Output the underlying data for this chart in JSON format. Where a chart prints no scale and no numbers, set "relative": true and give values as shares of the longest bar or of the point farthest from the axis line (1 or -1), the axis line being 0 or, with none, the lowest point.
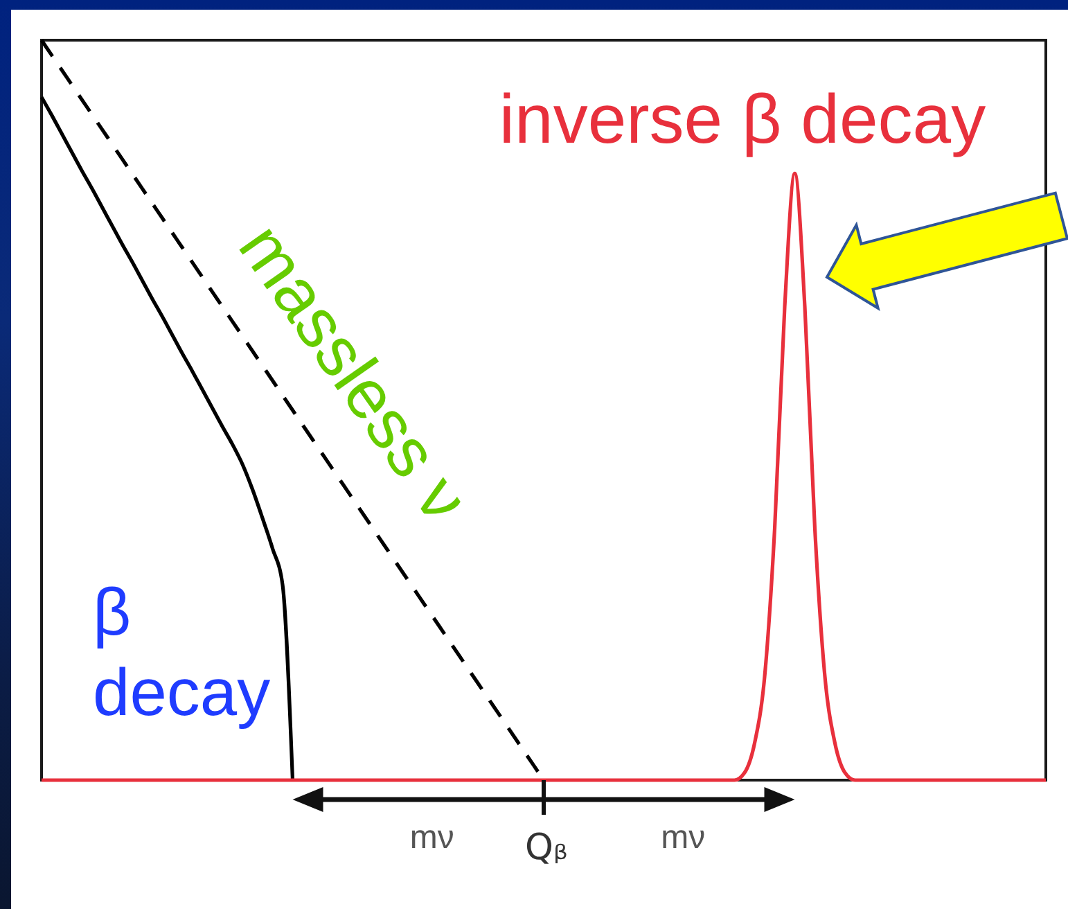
{
  "chart_data": {
    "type": "line",
    "relative": true,
    "categories": [
      null,
      null,
      null,
      null,
      null,
      null,
      null,
      null,
      null,
      null,
      null,
      null,
      null,
      null,
      null,
      null,
      null,
      null,
      null,
      null,
      null,
      null,
      null,
      null,
      null,
      null,
      null,
      null,
      null,
      null,
      null,
      null,
      null,
      null,
      null,
      null,
      null,
      null,
      null,
      null,
      null,
      null,
      null,
      null,
      null,
      null,
      null,
      null,
      null,
      null,
      null,
      null,
      null,
      null,
      null,
      null,
      null,
      null,
      null,
      null,
      null,
      null,
      null,
      null,
      null,
      null,
      null,
      null,
      null,
      null,
      null,
      null,
      null,
      null,
      null,
      null,
      null,
      null,
      null,
      null,
      null,
      null,
      null,
      null,
      null,
      null,
      null,
      null,
      null,
      null,
      null,
      null,
      null,
      null,
      null,
      null,
      null,
      null,
      null,
      null,
      null
    ],
    "series": [
      {
        "name": "β decay",
        "color": "#000000",
        "values": [
          0.923,
          0.899,
          0.874,
          0.849,
          0.824,
          0.8,
          0.775,
          0.75,
          0.725,
          0.701,
          0.676,
          0.651,
          0.627,
          0.602,
          0.577,
          0.553,
          0.528,
          0.503,
          0.478,
          0.454,
          0.427,
          0.393,
          0.354,
          0.313,
          0.264,
          0,
          null,
          null,
          null,
          null,
          null,
          null,
          null,
          null,
          null,
          null,
          null,
          null,
          null,
          null,
          null,
          null,
          null,
          null,
          null,
          null,
          null,
          null,
          null,
          null,
          null,
          null,
          null,
          null,
          null,
          null,
          null,
          null,
          null,
          null,
          null,
          null,
          null,
          null,
          null,
          null,
          null,
          null,
          null,
          null,
          null,
          null,
          null,
          null,
          null,
          null,
          null,
          null,
          null,
          null,
          null,
          null,
          null,
          null,
          null,
          null,
          null,
          null,
          null,
          null,
          null,
          null,
          null,
          null,
          null,
          null,
          null,
          null,
          null,
          null,
          null
        ]
      },
      {
        "name": "massless ν",
        "color": "#000000",
        "line_style": "dashed",
        "values": [
          1,
          0.98,
          0.96,
          0.94,
          0.92,
          0.9,
          0.88,
          0.86,
          0.84,
          0.82,
          0.8,
          0.78,
          0.76,
          0.74,
          0.72,
          0.7,
          0.68,
          0.66,
          0.64,
          0.62,
          0.6,
          0.58,
          0.56,
          0.54,
          0.52,
          0.5,
          0.48,
          0.46,
          0.44,
          0.42,
          0.4,
          0.38,
          0.36,
          0.34,
          0.32,
          0.3,
          0.28,
          0.26,
          0.24,
          0.22,
          0.2,
          0.18,
          0.16,
          0.14,
          0.12,
          0.1,
          0.08,
          0.06,
          0.04,
          0.02,
          0,
          null,
          null,
          null,
          null,
          null,
          null,
          null,
          null,
          null,
          null,
          null,
          null,
          null,
          null,
          null,
          null,
          null,
          null,
          null,
          null,
          null,
          null,
          null,
          null,
          null,
          null,
          null,
          null,
          null,
          null,
          null,
          null,
          null,
          null,
          null,
          null,
          null,
          null,
          null,
          null,
          null,
          null,
          null,
          null,
          null,
          null,
          null,
          null,
          null,
          null
        ]
      },
      {
        "name": "inverse β decay",
        "color": "#e8303c",
        "values": [
          0,
          0,
          0,
          0,
          0,
          0,
          0,
          0,
          0,
          0,
          0,
          0,
          0,
          0,
          0,
          0,
          0,
          0,
          0,
          0,
          0,
          0,
          0,
          0,
          0,
          0,
          0,
          0,
          0,
          0,
          0,
          0,
          0,
          0,
          0,
          0,
          0,
          0,
          0,
          0,
          0,
          0,
          0,
          0,
          0,
          0,
          0,
          0,
          0,
          0,
          0,
          0,
          0,
          0,
          0,
          0,
          0,
          0,
          0,
          0,
          0,
          0,
          0,
          0,
          0,
          0,
          0,
          0,
          0,
          0,
          0.01,
          0.05,
          0.14,
          0.34,
          0.64,
          0.82,
          0.64,
          0.34,
          0.14,
          0.05,
          0.01,
          0,
          0,
          0,
          0,
          0,
          0,
          0,
          0,
          0,
          0,
          0,
          0,
          0,
          0,
          0,
          0,
          0,
          0,
          0,
          0
        ]
      }
    ],
    "annotations": [
      "mν",
      "Qᵦ",
      "mν"
    ]
  }
}
